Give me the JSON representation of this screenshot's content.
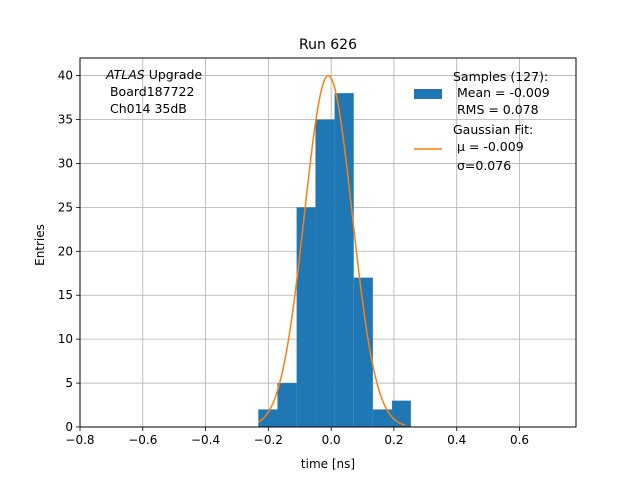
{
  "chart_data": {
    "type": "bar",
    "title": "Run 626",
    "xlabel": "time [ns]",
    "ylabel": "Entries",
    "xlim": [
      -0.8,
      0.78
    ],
    "ylim": [
      0,
      42
    ],
    "grid": true,
    "x_ticks": [
      -0.8,
      -0.6,
      -0.4,
      -0.2,
      0.0,
      0.2,
      0.4,
      0.6
    ],
    "x_tick_labels": [
      "−0.8",
      "−0.6",
      "−0.4",
      "−0.2",
      "0.0",
      "0.2",
      "0.4",
      "0.6"
    ],
    "y_ticks": [
      0,
      5,
      10,
      15,
      20,
      25,
      30,
      35,
      40
    ],
    "y_tick_labels": [
      "0",
      "5",
      "10",
      "15",
      "20",
      "25",
      "30",
      "35",
      "40"
    ],
    "histogram": {
      "bin_edges": [
        -0.232,
        -0.171,
        -0.11,
        -0.05,
        0.011,
        0.072,
        0.133,
        0.194,
        0.254
      ],
      "counts": [
        2,
        5,
        25,
        35,
        38,
        17,
        2,
        3
      ],
      "color": "#1f77b4"
    },
    "fit": {
      "mu": -0.009,
      "sigma": 0.076,
      "amplitude": 40,
      "x_range": [
        -0.232,
        0.235
      ],
      "color": "#ff7f0e"
    },
    "annotation": {
      "line1_italic": "ATLAS",
      "line1_rest": " Upgrade",
      "line2": " Board187722",
      "line3": " Ch014 35dB"
    },
    "legend": {
      "position": "upper right",
      "entries": [
        {
          "lines": [
            "Samples (127):",
            " Mean = -0.009",
            " RMS = 0.078"
          ],
          "marker": "patch",
          "color": "#1f77b4"
        },
        {
          "lines": [
            "Gaussian Fit:",
            " μ = -0.009",
            " σ=0.076"
          ],
          "marker": "line",
          "color": "#ff7f0e"
        }
      ]
    }
  }
}
